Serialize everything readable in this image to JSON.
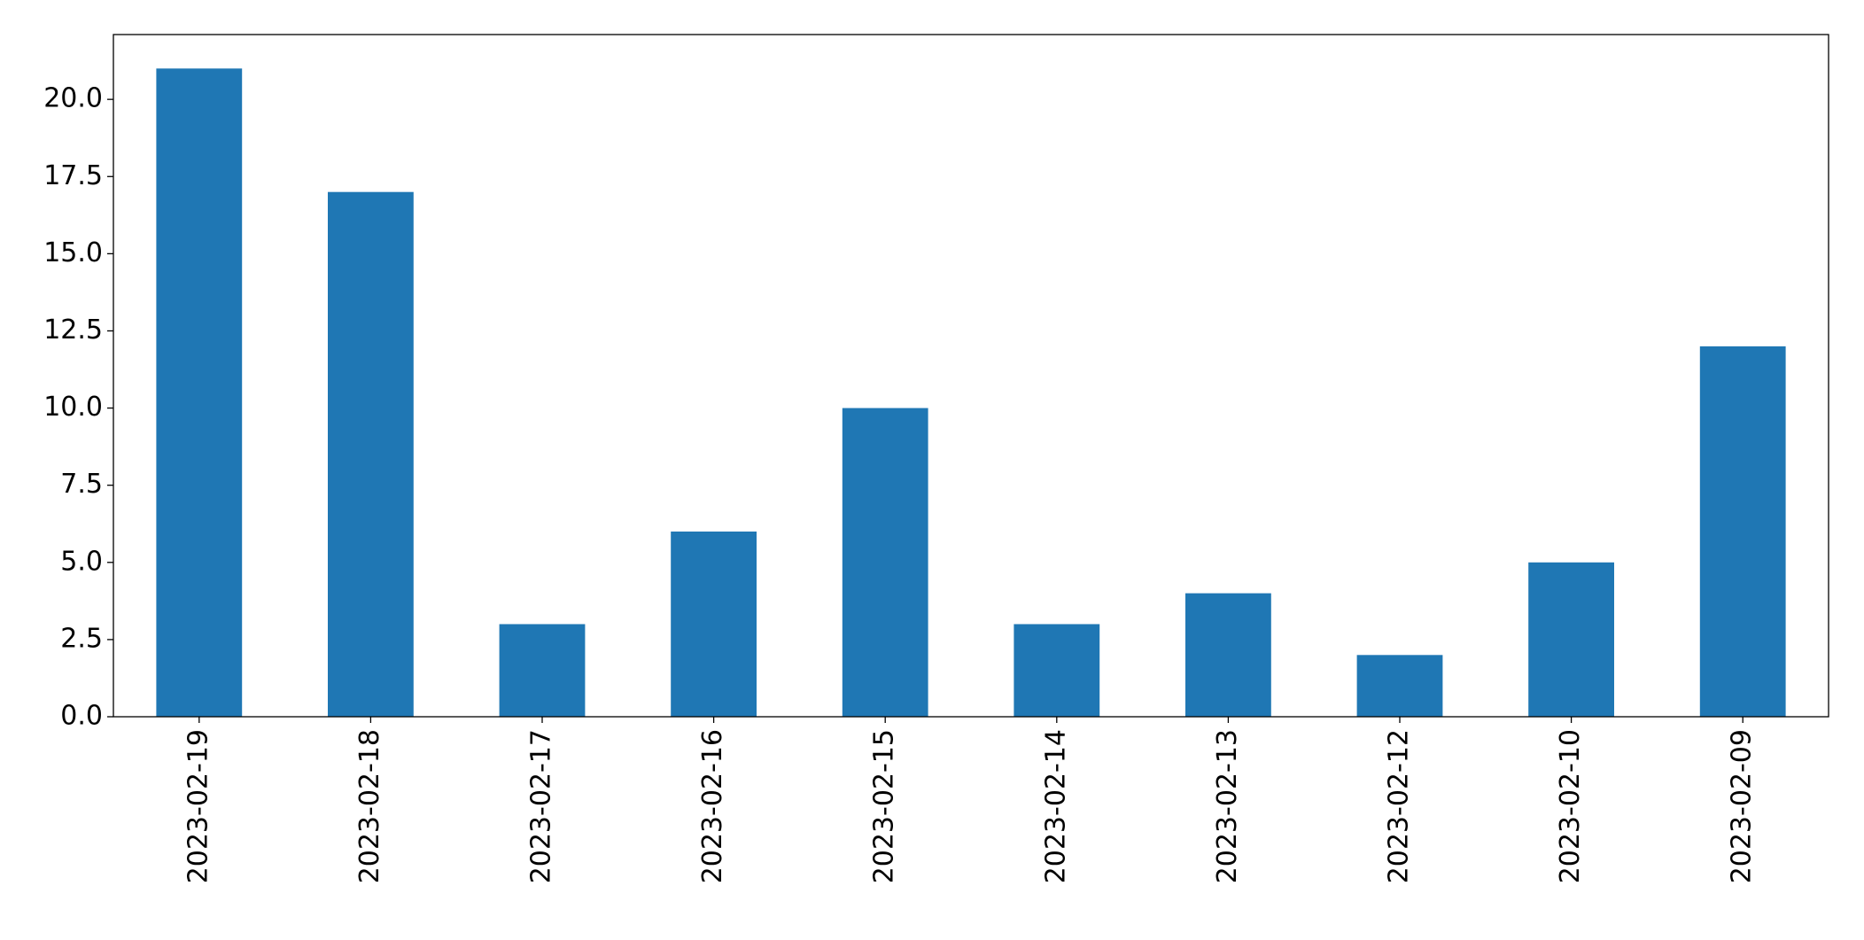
{
  "chart_data": {
    "type": "bar",
    "categories": [
      "2023-02-19",
      "2023-02-18",
      "2023-02-17",
      "2023-02-16",
      "2023-02-15",
      "2023-02-14",
      "2023-02-13",
      "2023-02-12",
      "2023-02-10",
      "2023-02-09"
    ],
    "values": [
      21,
      17,
      3,
      6,
      10,
      3,
      4,
      2,
      5,
      12
    ],
    "color": "#1f77b4",
    "ylim": [
      0,
      22.1
    ],
    "yticks": [
      {
        "value": 0,
        "label": "0.0"
      },
      2.5,
      {
        "value": 5,
        "label": "5.0"
      },
      7.5,
      {
        "value": 10,
        "label": "10.0"
      },
      12.5,
      {
        "value": 15,
        "label": "15.0"
      },
      17.5,
      {
        "value": 20,
        "label": "20.0"
      }
    ],
    "grid": false
  }
}
